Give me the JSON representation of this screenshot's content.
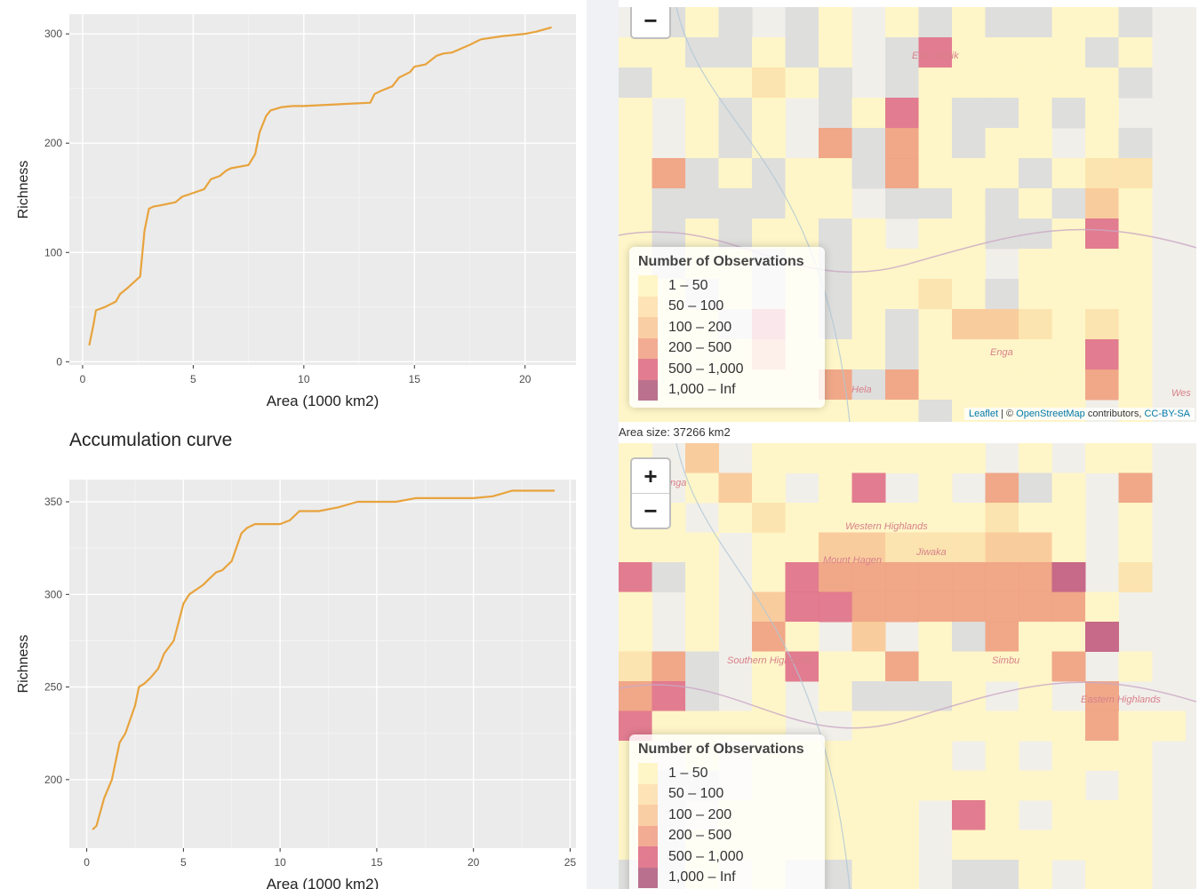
{
  "charts": [
    {
      "type": "line",
      "title": "",
      "xlabel": "Area (1000 km2)",
      "ylabel": "Richness",
      "xlim": [
        -0.6,
        22.3
      ],
      "ylim": [
        -3,
        318
      ],
      "xticks": [
        0,
        5,
        10,
        15,
        20
      ],
      "yticks": [
        0,
        100,
        200,
        300
      ],
      "grid": true,
      "line_color": "#E8A33D",
      "x": [
        0.3,
        0.5,
        0.6,
        1.0,
        1.5,
        1.7,
        2.0,
        2.6,
        2.8,
        3.0,
        3.2,
        3.5,
        4.2,
        4.5,
        4.8,
        5.5,
        5.8,
        6.2,
        6.5,
        6.7,
        7.5,
        7.8,
        8.0,
        8.3,
        8.5,
        9.0,
        9.5,
        10.0,
        11.0,
        12.0,
        13.0,
        13.2,
        13.5,
        14.0,
        14.3,
        14.8,
        15.0,
        15.5,
        16.0,
        16.3,
        16.7,
        17.5,
        18.0,
        19.0,
        20.0,
        20.5,
        21.2
      ],
      "y": [
        15,
        35,
        47,
        50,
        55,
        62,
        67,
        78,
        120,
        140,
        142,
        143,
        146,
        151,
        153,
        158,
        167,
        170,
        175,
        177,
        180,
        190,
        210,
        225,
        230,
        233,
        234,
        234,
        235,
        236,
        237,
        245,
        248,
        252,
        260,
        265,
        270,
        272,
        280,
        282,
        283,
        290,
        295,
        298,
        300,
        302,
        306
      ]
    },
    {
      "type": "line",
      "title": "Accumulation curve",
      "xlabel": "Area (1000 km2)",
      "ylabel": "Richness",
      "xlim": [
        -0.9,
        25.3
      ],
      "ylim": [
        163,
        362
      ],
      "xticks": [
        0,
        5,
        10,
        15,
        20,
        25
      ],
      "yticks": [
        200,
        250,
        300,
        350
      ],
      "grid": true,
      "line_color": "#E8A33D",
      "x": [
        0.3,
        0.5,
        0.9,
        1.3,
        1.5,
        1.7,
        2.0,
        2.5,
        2.7,
        3.0,
        3.3,
        3.7,
        4.0,
        4.5,
        5.0,
        5.3,
        6.0,
        6.3,
        6.7,
        7.0,
        7.5,
        8.0,
        8.3,
        8.7,
        9.0,
        9.5,
        10.0,
        10.5,
        11.0,
        11.5,
        12.0,
        13.0,
        14.0,
        15.0,
        16.0,
        17.0,
        18.0,
        19.0,
        20.0,
        21.0,
        22.0,
        24.2
      ],
      "y": [
        173,
        175,
        190,
        200,
        210,
        220,
        225,
        240,
        250,
        252,
        255,
        260,
        268,
        275,
        295,
        300,
        305,
        308,
        312,
        313,
        318,
        333,
        336,
        338,
        338,
        338,
        338,
        340,
        345,
        345,
        345,
        347,
        350,
        350,
        350,
        352,
        352,
        352,
        352,
        353,
        356,
        356
      ]
    }
  ],
  "section_title": "Accumulation curve",
  "maps": [
    {
      "zoom_buttons": [
        "−"
      ],
      "legend": {
        "title": "Number of Observations",
        "items": [
          {
            "label": "1 – 50",
            "color": "#FFF3B8"
          },
          {
            "label": "50 – 100",
            "color": "#FCD9A0"
          },
          {
            "label": "100 – 200",
            "color": "#F8BD8A"
          },
          {
            "label": "200 – 500",
            "color": "#EE9072"
          },
          {
            "label": "500 – 1,000",
            "color": "#D8506E"
          },
          {
            "label": "1,000 – Inf",
            "color": "#A3416B"
          }
        ]
      },
      "place_labels": [
        "East Sepik",
        "Enga",
        "Hela",
        "Wes"
      ],
      "attribution": {
        "leaflet": "Leaflet",
        "sep": " | © ",
        "osm": "OpenStreetMap",
        "contrib": " contributors, ",
        "license": "CC-BY-SA"
      }
    },
    {
      "zoom_buttons": [
        "+",
        "−"
      ],
      "legend": {
        "title": "Number of Observations",
        "items": [
          {
            "label": "1 – 50",
            "color": "#FFF3B8"
          },
          {
            "label": "50 – 100",
            "color": "#FCD9A0"
          },
          {
            "label": "100 – 200",
            "color": "#F8BD8A"
          },
          {
            "label": "200 – 500",
            "color": "#EE9072"
          },
          {
            "label": "500 – 1,000",
            "color": "#D8506E"
          },
          {
            "label": "1,000 – Inf",
            "color": "#A3416B"
          }
        ]
      },
      "place_labels": [
        "nga",
        "Western Highlands",
        "Mount Hagen",
        "Jiwaka",
        "Southern Highlands",
        "Simbu",
        "Eastern Highlands"
      ]
    }
  ],
  "area_size": "Area size: 37266 km2"
}
